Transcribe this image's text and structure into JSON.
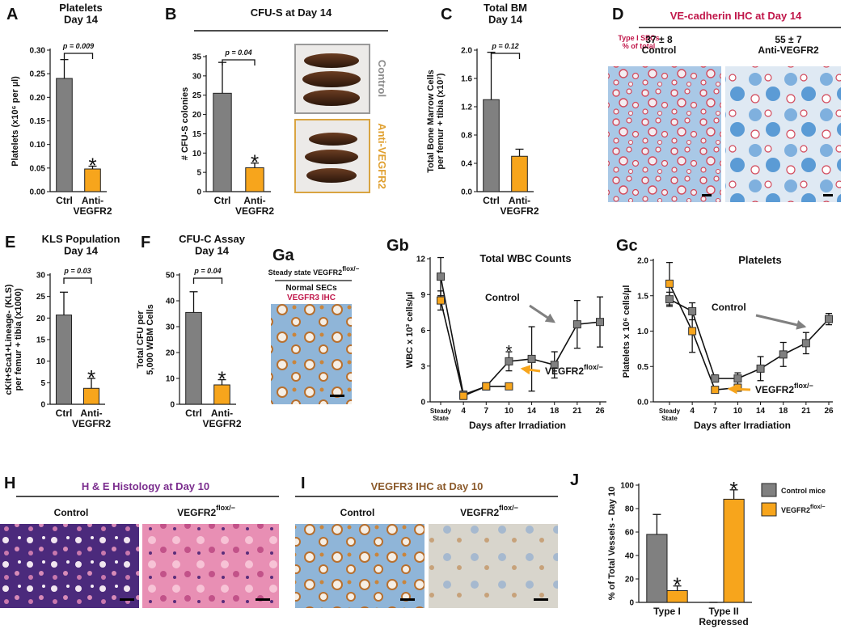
{
  "chart_data": [
    {
      "panel": "A",
      "type": "bar",
      "title": "Platelets\nDay 14",
      "y_label": "Platelets (x10⁶ per µl)",
      "categories": [
        "Ctrl",
        "Anti-\nVEGFR2"
      ],
      "values": [
        0.24,
        0.048
      ],
      "errors": [
        0.04,
        0.006
      ],
      "colors": [
        "#808080",
        "#f7a51c"
      ],
      "ylim": [
        0,
        0.3
      ],
      "yticks": [
        {
          "value": 0,
          "label": "0.00"
        },
        0.05,
        {
          "value": 0.1,
          "label": "0.10"
        },
        0.15,
        {
          "value": 0.2,
          "label": "0.20"
        },
        0.25,
        {
          "value": 0.3,
          "label": "0.30"
        }
      ],
      "p_value": "p = 0.009",
      "significance": "*"
    },
    {
      "panel": "B",
      "type": "bar",
      "title": "CFU-S at Day 14",
      "y_label": "# CFU-S colonies",
      "categories": [
        "Ctrl",
        "Anti-\nVEGFR2"
      ],
      "values": [
        25.5,
        6.2
      ],
      "errors": [
        8,
        1.2
      ],
      "colors": [
        "#808080",
        "#f7a51c"
      ],
      "ylim": [
        0,
        35
      ],
      "yticks": [
        0,
        5,
        10,
        15,
        20,
        25,
        30,
        35
      ],
      "p_value": "p = 0.04",
      "significance": "*",
      "photo_labels": [
        "Control",
        "Anti-VEGFR2"
      ]
    },
    {
      "panel": "C",
      "type": "bar",
      "title": "Total BM\nDay 14",
      "y_label": "Total Bone Marrow Cells\nper femur + tibia (x10⁷)",
      "categories": [
        "Ctrl",
        "Anti-\nVEGFR2"
      ],
      "values": [
        1.3,
        0.5
      ],
      "errors": [
        0.67,
        0.1
      ],
      "colors": [
        "#808080",
        "#f7a51c"
      ],
      "ylim": [
        0,
        2
      ],
      "yticks": [
        {
          "value": 0,
          "label": "0.0"
        },
        0.4,
        0.8,
        1.2,
        1.6,
        {
          "value": 2,
          "label": "2.0"
        }
      ],
      "p_value": "p = 0.12"
    },
    {
      "panel": "E",
      "type": "bar",
      "title": "KLS Population\nDay 14",
      "y_label": "cKit+Sca1+Lineage- (KLS)\nper femur + tibia (x1000)",
      "categories": [
        "Ctrl",
        "Anti-\nVEGFR2"
      ],
      "values": [
        20.7,
        3.7
      ],
      "errors": [
        5.3,
        2.3
      ],
      "colors": [
        "#808080",
        "#f7a51c"
      ],
      "ylim": [
        0,
        30
      ],
      "yticks": [
        0,
        5,
        10,
        15,
        20,
        25,
        30
      ],
      "p_value": "p = 0.03",
      "significance": "*"
    },
    {
      "panel": "F",
      "type": "bar",
      "title": "CFU-C Assay\nDay 14",
      "y_label": "Total CFU per\n5,000 WBM Cells",
      "categories": [
        "Ctrl",
        "Anti-\nVEGFR2"
      ],
      "values": [
        35.5,
        7.5
      ],
      "errors": [
        8,
        2
      ],
      "colors": [
        "#808080",
        "#f7a51c"
      ],
      "ylim": [
        0,
        50
      ],
      "yticks": [
        0,
        10,
        20,
        30,
        40,
        50
      ],
      "p_value": "p = 0.04",
      "significance": "*"
    },
    {
      "panel": "Gb",
      "type": "line",
      "title": "Total WBC Counts",
      "y_label": "WBC x 10³ cells/µl",
      "x_label": "Days after Irradiation",
      "categories": [
        "Steady\nState",
        "4",
        "7",
        "10",
        "14",
        "18",
        "21",
        "26"
      ],
      "series": [
        {
          "name": "Control",
          "color": "#808080",
          "values": [
            10.5,
            0.6,
            1.3,
            3.4,
            3.6,
            3.1,
            6.5,
            6.7
          ],
          "errors": [
            1.6,
            0.3,
            0.3,
            0.8,
            2.7,
            1.1,
            2,
            2.1
          ]
        },
        {
          "name": "VEGFR2",
          "name_sup": "flox/−",
          "color": "#f7a51c",
          "values": [
            8.5,
            0.5,
            1.3,
            1.3,
            null,
            null,
            null,
            null
          ],
          "errors": [
            0.8,
            0.3,
            0.2,
            0.2,
            null,
            null,
            null,
            null
          ]
        }
      ],
      "ylim": [
        0,
        12
      ],
      "yticks": [
        0,
        3,
        6,
        9,
        12
      ],
      "significance": "*",
      "significance_index": 3
    },
    {
      "panel": "Gc",
      "type": "line",
      "title": "Platelets",
      "y_label": "Platelets x 10⁶ cells/µl",
      "x_label": "Days after Irradiation",
      "categories": [
        "Steady\nState",
        "4",
        "7",
        "10",
        "14",
        "18",
        "21",
        "26"
      ],
      "series": [
        {
          "name": "Control",
          "color": "#808080",
          "values": [
            1.45,
            1.28,
            0.33,
            0.33,
            0.47,
            0.67,
            0.83,
            1.17
          ],
          "errors": [
            0.1,
            0.12,
            0.05,
            0.08,
            0.17,
            0.17,
            0.15,
            0.08
          ]
        },
        {
          "name": "VEGFR2",
          "name_sup": "flox/−",
          "color": "#f7a51c",
          "values": [
            1.67,
            1.0,
            0.17,
            0.2,
            null,
            null,
            null,
            null
          ],
          "errors": [
            0.3,
            0.3,
            0.03,
            0.05,
            null,
            null,
            null,
            null
          ]
        }
      ],
      "ylim": [
        0,
        2
      ],
      "yticks": [
        {
          "value": 0,
          "label": "0.0"
        },
        0.5,
        {
          "value": 1,
          "label": "1.0"
        },
        1.5,
        {
          "value": 2,
          "label": "2.0"
        }
      ]
    },
    {
      "panel": "J",
      "type": "grouped_bar",
      "y_label": "% of Total Vessels - Day 10",
      "categories": [
        "Type I",
        "Type II\nRegressed"
      ],
      "series": [
        {
          "name": "Control mice",
          "color": "#808080",
          "values": [
            58,
            0
          ],
          "errors": [
            17,
            0
          ]
        },
        {
          "name": "VEGFR2",
          "name_sup": "flox/−",
          "color": "#f7a51c",
          "values": [
            10,
            88
          ],
          "errors": [
            4,
            8
          ]
        }
      ],
      "ylim": [
        0,
        100
      ],
      "yticks": [
        0,
        20,
        40,
        60,
        80,
        100
      ],
      "legend": "upper right",
      "significance": [
        "*",
        "*"
      ]
    }
  ],
  "image_panels": [
    {
      "panel": "D",
      "title": "VE-cadherin IHC at Day 14",
      "side_note": "Type I SECs\n% of total",
      "captions": [
        "37 ± 8\nControl",
        "55 ± 7\nAnti-VEGFR2"
      ]
    },
    {
      "panel": "Ga",
      "title": "Steady state VEGFR2",
      "title_sup": "flox/−",
      "captions": [
        "Normal SECs",
        "VEGFR3 IHC"
      ]
    },
    {
      "panel": "H",
      "title": "H & E Histology at Day 10",
      "captions": [
        "Control",
        "VEGFR2"
      ],
      "caption_sup": "flox/−"
    },
    {
      "panel": "I",
      "title": "VEGFR3 IHC at Day 10",
      "captions": [
        "Control",
        "VEGFR2"
      ],
      "caption_sup": "flox/−"
    }
  ]
}
